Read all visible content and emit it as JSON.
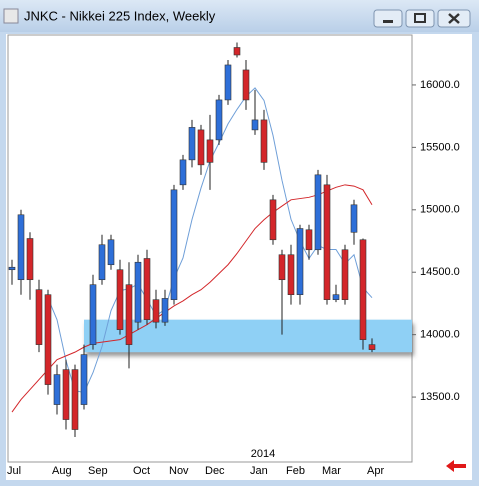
{
  "chart_data": {
    "type": "candlestick",
    "title": "JNKC - Nikkei 225 Index, Weekly",
    "categories": [
      "Jul",
      null,
      null,
      null,
      null,
      "Aug",
      null,
      null,
      null,
      "Sep",
      null,
      null,
      null,
      null,
      "Oct",
      null,
      null,
      null,
      "Nov",
      null,
      null,
      null,
      "Dec",
      null,
      null,
      null,
      null,
      "Jan",
      null,
      null,
      null,
      "Feb",
      null,
      null,
      null,
      "Mar",
      null,
      null,
      null,
      null,
      "Apr"
    ],
    "year_label": {
      "index": 27,
      "label": "2014"
    },
    "open": [
      14520,
      14440,
      14770,
      14360,
      14320,
      13440,
      13720,
      13720,
      13440,
      13920,
      14440,
      14560,
      14520,
      14400,
      14100,
      14610,
      14280,
      14100,
      14280,
      15200,
      15400,
      15640,
      15560,
      15560,
      15880,
      16300,
      16120,
      15640,
      15720,
      15080,
      14640,
      14640,
      14320,
      14840,
      14680,
      15200,
      14280,
      14680,
      14820,
      14760,
      13920
    ],
    "high": [
      14600,
      15000,
      14820,
      14440,
      14360,
      13760,
      13800,
      13760,
      13920,
      14480,
      14800,
      14800,
      14600,
      14580,
      14640,
      14680,
      14360,
      14360,
      15200,
      15440,
      15720,
      15680,
      15760,
      15920,
      16200,
      16340,
      16200,
      15960,
      15800,
      15120,
      14680,
      14720,
      14880,
      14880,
      15320,
      15280,
      14400,
      14720,
      15080,
      14770,
      13970
    ],
    "low": [
      14400,
      14320,
      14280,
      13860,
      13520,
      13360,
      13240,
      13180,
      13400,
      13880,
      14400,
      14520,
      14000,
      13730,
      14040,
      14080,
      14050,
      14070,
      14240,
      15160,
      15340,
      15280,
      15160,
      15520,
      15840,
      16220,
      15800,
      15600,
      15320,
      14720,
      14000,
      14240,
      14240,
      14600,
      14640,
      14240,
      14260,
      14240,
      14720,
      13880,
      13860
    ],
    "close": [
      14540,
      14960,
      14440,
      13920,
      13600,
      13680,
      13320,
      13240,
      13840,
      14400,
      14720,
      14760,
      14040,
      13920,
      14580,
      14120,
      14100,
      14290,
      15160,
      15400,
      15660,
      15360,
      15380,
      15880,
      16160,
      16240,
      15880,
      15720,
      15380,
      14760,
      14440,
      14320,
      14850,
      14680,
      15280,
      14280,
      14320,
      14280,
      15040,
      13960,
      13880
    ],
    "up_color": "#2e6fd8",
    "down_color": "#d3262a",
    "lines": [
      {
        "color": "#6f9fd8",
        "values": [
          null,
          null,
          null,
          null,
          14292,
          14120,
          13792,
          13552,
          13536,
          13696,
          13904,
          14192,
          14352,
          14368,
          14404,
          14284,
          14152,
          14202,
          14450,
          14614,
          14922,
          15174,
          15392,
          15536,
          15688,
          15804,
          15908,
          15976,
          15876,
          15596,
          15236,
          14924,
          14750,
          14610,
          14714,
          14682,
          14682,
          14568,
          14640,
          14376,
          14296
        ]
      },
      {
        "color": "#d3262a",
        "values": [
          13380,
          13480,
          13560,
          13640,
          13720,
          13800,
          13830,
          13860,
          13900,
          13930,
          13940,
          13950,
          13960,
          14000,
          14040,
          14080,
          14130,
          14180,
          14230,
          14270,
          14320,
          14360,
          14420,
          14490,
          14560,
          14650,
          14750,
          14850,
          14920,
          14980,
          15030,
          15080,
          15090,
          15100,
          15120,
          15150,
          15180,
          15200,
          15190,
          15160,
          15040
        ]
      }
    ],
    "zone": {
      "low": 13860,
      "high": 14120,
      "start_index": 8,
      "color": "#8fd0f5"
    },
    "ylim": [
      12980,
      16400
    ],
    "yticks": [
      {
        "value": 13500,
        "label": "13500.0"
      },
      {
        "value": 14000,
        "label": "14000.0"
      },
      {
        "value": 14500,
        "label": "14500.0"
      },
      {
        "value": 15000,
        "label": "15000.0"
      },
      {
        "value": 15500,
        "label": "15500.0"
      },
      {
        "value": 16000,
        "label": "16000.0"
      }
    ],
    "grid": false
  }
}
